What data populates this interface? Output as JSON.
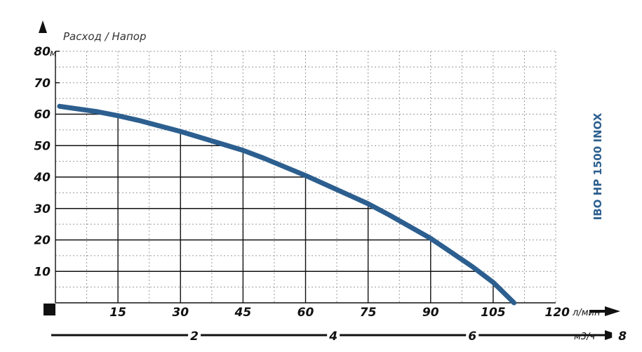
{
  "chart_data": {
    "type": "line",
    "title": "Расход / Напор",
    "model": "IBO HP 1500 INOX",
    "y_unit": "м",
    "x_unit": "л/мин",
    "x2_unit": "м3/ч",
    "xlim": [
      0,
      120
    ],
    "ylim": [
      0,
      80
    ],
    "y_ticks": [
      10,
      20,
      30,
      40,
      50,
      60,
      70,
      80
    ],
    "x_ticks": [
      15,
      30,
      45,
      60,
      75,
      90,
      105,
      120
    ],
    "x2_ticks": [
      2,
      4,
      6,
      8
    ],
    "grid": true,
    "curve_color": "#2c5f8f",
    "series": [
      {
        "x": [
          1,
          10,
          15,
          20,
          30,
          40,
          45,
          50,
          60,
          70,
          75,
          80,
          90,
          100,
          105,
          110
        ],
        "values": [
          62.5,
          60.8,
          59.5,
          58.0,
          54.5,
          50.5,
          48.5,
          46.0,
          40.5,
          34.5,
          31.5,
          28.0,
          20.5,
          11.5,
          6.5,
          0
        ]
      }
    ]
  }
}
